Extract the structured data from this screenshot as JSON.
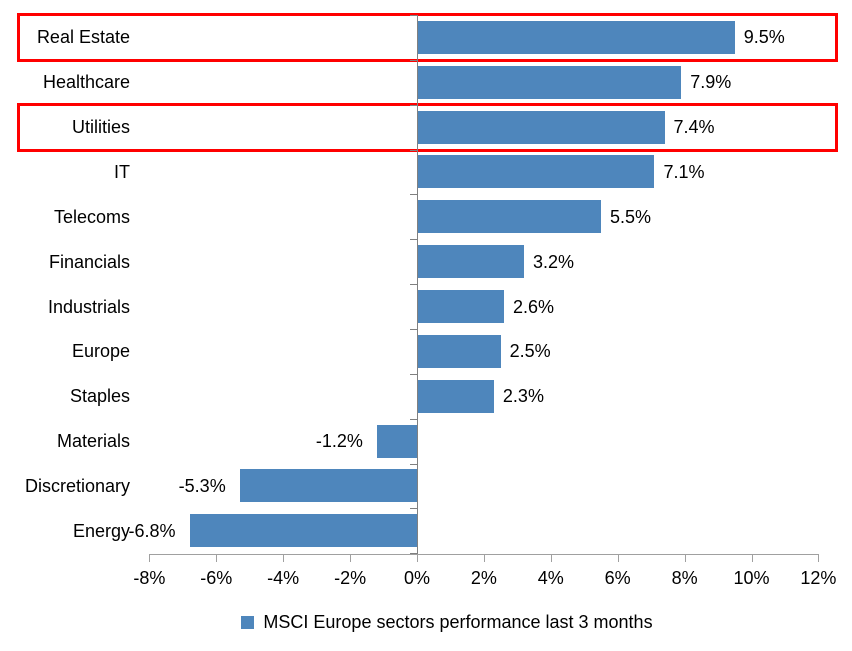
{
  "chart_data": {
    "type": "bar",
    "orientation": "horizontal",
    "title": "",
    "categories": [
      "Real Estate",
      "Healthcare",
      "Utilities",
      "IT",
      "Telecoms",
      "Financials",
      "Industrials",
      "Europe",
      "Staples",
      "Materials",
      "Discretionary",
      "Energy"
    ],
    "values": [
      9.5,
      7.9,
      7.4,
      7.1,
      5.5,
      3.2,
      2.6,
      2.5,
      2.3,
      -1.2,
      -5.3,
      -6.8
    ],
    "value_labels": [
      "9.5%",
      "7.9%",
      "7.4%",
      "7.1%",
      "5.5%",
      "3.2%",
      "2.6%",
      "2.5%",
      "2.3%",
      "-1.2%",
      "-5.3%",
      "-6.8%"
    ],
    "x_tick_labels": [
      "-8%",
      "-6%",
      "-4%",
      "-2%",
      "0%",
      "2%",
      "4%",
      "6%",
      "8%",
      "10%",
      "12%"
    ],
    "x_tick_values": [
      -8,
      -6,
      -4,
      -2,
      0,
      2,
      4,
      6,
      8,
      10,
      12
    ],
    "xlim": [
      -8,
      12
    ],
    "grid": false,
    "legend": "MSCI Europe sectors performance last 3 months",
    "legend_position": "bottom",
    "bar_color": "#4E86BC",
    "axis_color": "#909090",
    "highlight_color": "#FF0000",
    "highlighted_rows": [
      0,
      2
    ]
  }
}
